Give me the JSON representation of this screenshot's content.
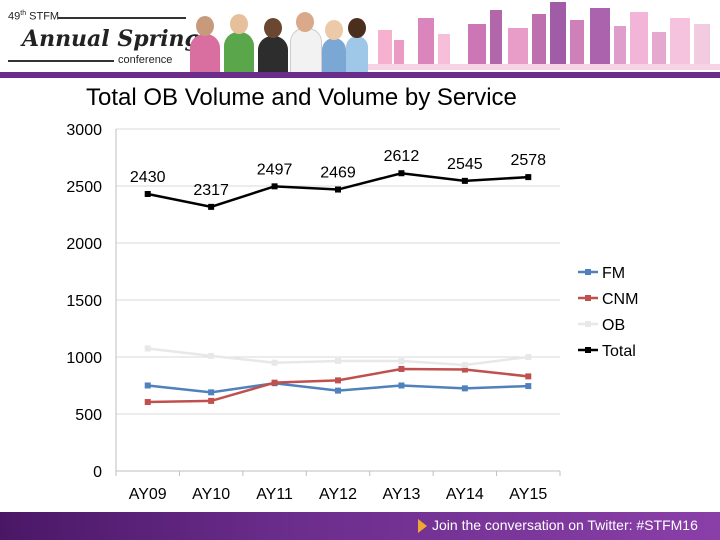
{
  "header": {
    "logo": {
      "edition": "49",
      "edition_suffix": "th",
      "org": "STFM",
      "script_title": "Annual Spring",
      "subtitle": "conference"
    },
    "colors": {
      "brand_purple": "#6b2d8c",
      "accent_orange": "#f0a830"
    }
  },
  "slide": {
    "title": "Total OB Volume and Volume by Service"
  },
  "chart_data": {
    "type": "line",
    "title": "",
    "xlabel": "",
    "ylabel": "",
    "categories": [
      "AY09",
      "AY10",
      "AY11",
      "AY12",
      "AY13",
      "AY14",
      "AY15"
    ],
    "ylim": [
      0,
      3000
    ],
    "yticks": [
      "0",
      "500",
      "1000",
      "1500",
      "2000",
      "2500",
      "3000"
    ],
    "grid": true,
    "legend_position": "right",
    "series": [
      {
        "name": "FM",
        "color": "#4f81bd",
        "values": [
          750,
          690,
          770,
          705,
          750,
          725,
          745
        ]
      },
      {
        "name": "CNM",
        "color": "#c0504d",
        "values": [
          605,
          615,
          775,
          795,
          895,
          890,
          830
        ]
      },
      {
        "name": "OB",
        "color": "#e8e8e8",
        "values": [
          1075,
          1010,
          950,
          965,
          965,
          930,
          1000
        ]
      },
      {
        "name": "Total",
        "color": "#000000",
        "values": [
          2430,
          2317,
          2497,
          2469,
          2612,
          2545,
          2578
        ]
      }
    ],
    "data_labels": {
      "series": "Total",
      "values": [
        "2430",
        "2317",
        "2497",
        "2469",
        "2612",
        "2545",
        "2578"
      ]
    }
  },
  "footer": {
    "text": "Join the conversation on Twitter: #STFM16"
  }
}
